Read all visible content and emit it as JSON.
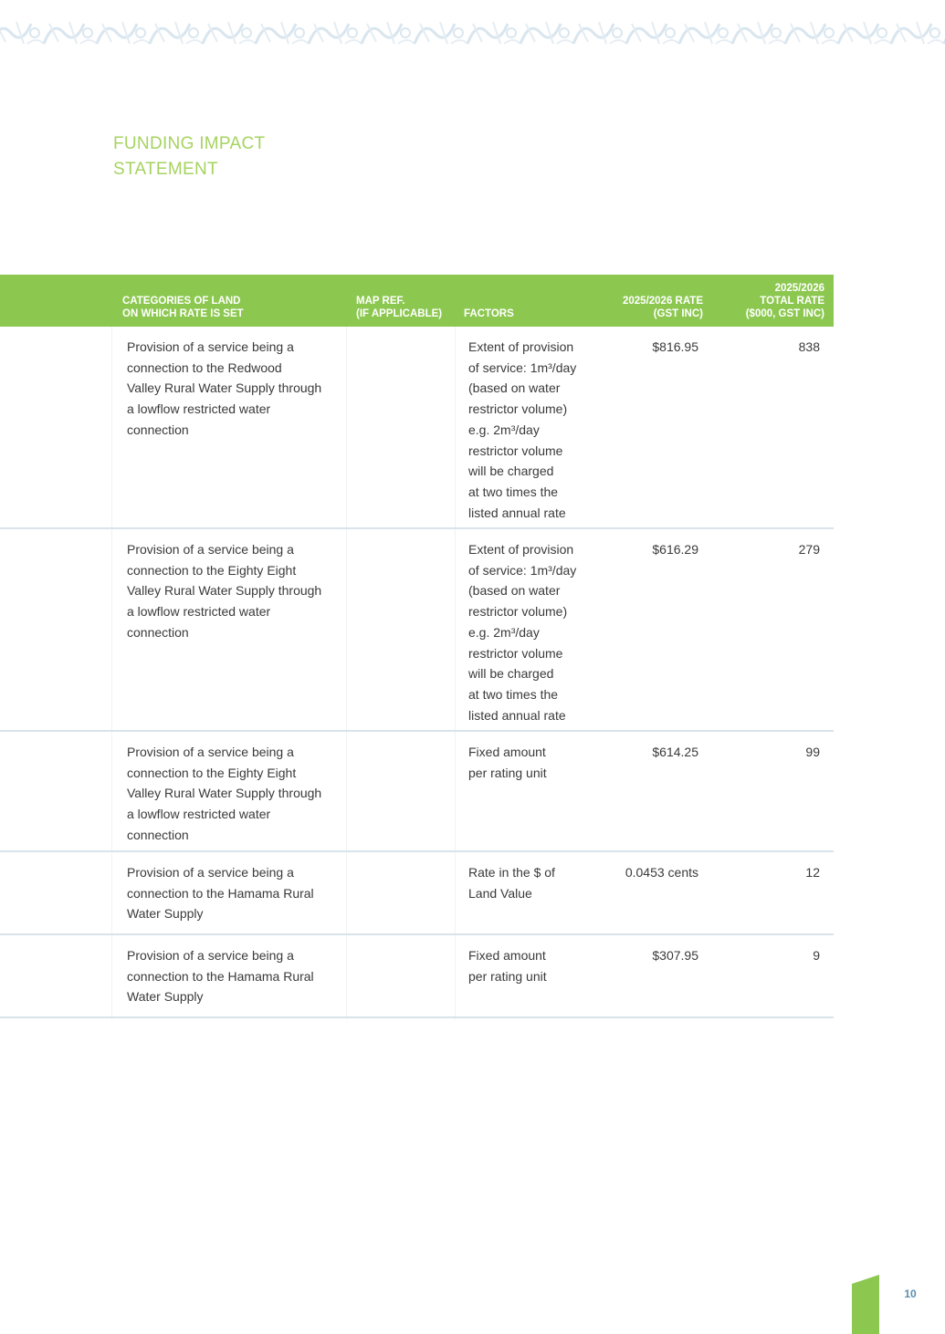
{
  "header": {
    "title_lines": [
      "FUNDING IMPACT",
      "STATEMENT"
    ],
    "banner_icon": "decorative-pattern-banner"
  },
  "table": {
    "columns": [
      {
        "lines": [
          "CATEGORIES OF LAND",
          "ON WHICH RATE IS SET"
        ]
      },
      {
        "lines": [
          "MAP REF.",
          "(IF APPLICABLE)"
        ]
      },
      {
        "lines": [
          "FACTORS"
        ]
      },
      {
        "lines": [
          "2025/2026 RATE",
          "(GST INC)"
        ]
      },
      {
        "lines": [
          "2025/2026",
          "TOTAL RATE",
          "($000, GST INC)"
        ]
      }
    ],
    "rows": [
      {
        "category": [
          "Provision of a service being a",
          "connection to the Redwood",
          "Valley Rural Water Supply through",
          "a lowflow restricted water",
          "connection"
        ],
        "factors": [
          "Extent of provision",
          "of service: 1m³/day",
          "(based on water",
          "restrictor volume)",
          "e.g. 2m³/day",
          "restrictor volume",
          "will be charged",
          "at two times the",
          "listed annual rate"
        ],
        "rate": "$816.95",
        "total": "838"
      },
      {
        "category": [
          "Provision of a service being a",
          "connection to the Eighty Eight",
          "Valley Rural Water Supply through",
          "a lowflow restricted water",
          "connection"
        ],
        "factors": [
          "Extent of provision",
          "of service: 1m³/day",
          "(based on water",
          "restrictor volume)",
          "e.g. 2m³/day",
          "restrictor volume",
          "will be charged",
          "at two times the",
          "listed annual rate"
        ],
        "rate": "$616.29",
        "total": "279"
      },
      {
        "category": [
          "Provision of a service being a",
          "connection to the Eighty Eight",
          "Valley Rural Water Supply through",
          "a lowflow restricted water",
          "connection"
        ],
        "factors": [
          "Fixed amount",
          "per rating unit"
        ],
        "rate": "$614.25",
        "total": "99"
      },
      {
        "category": [
          "Provision of a service being a",
          "connection to the Hamama Rural",
          "Water Supply"
        ],
        "factors": [
          "Rate in the $ of",
          "Land Value"
        ],
        "rate": "0.0453 cents",
        "total": "12"
      },
      {
        "category": [
          "Provision of a service being a",
          "connection to the Hamama Rural",
          "Water Supply"
        ],
        "factors": [
          "Fixed amount",
          "per rating unit"
        ],
        "rate": "$307.95",
        "total": "9"
      }
    ]
  },
  "footer": {
    "page_number": "10",
    "accent_color": "#8cc850"
  }
}
